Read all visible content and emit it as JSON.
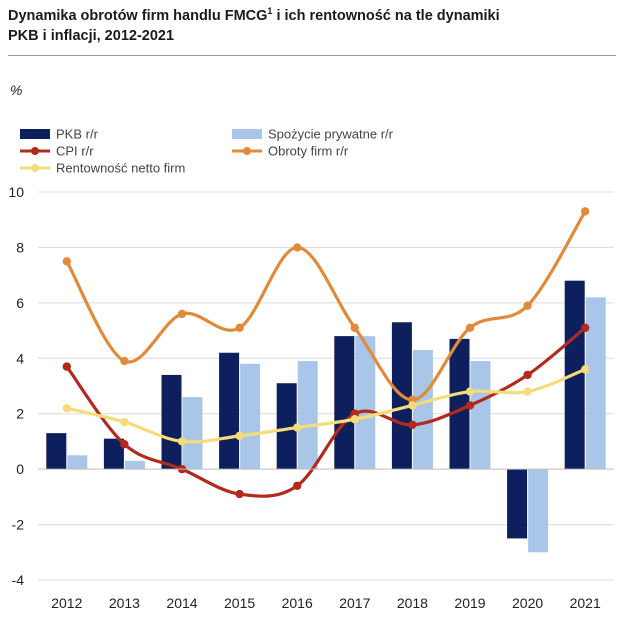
{
  "title_main": "Dynamika obrotów firm handlu FMCG",
  "title_sup": "1",
  "title_rest": " i ich rentowność na tle dynamiki",
  "title_line2": "PKB i inflacji, 2012-2021",
  "unit_label": "%",
  "colors": {
    "pkb": "#0d1f5c",
    "spozycie": "#a9c6e8",
    "cpi": "#b02a1e",
    "obroty": "#e08a3c",
    "rentownosc": "#f5dc7a",
    "grid": "#dcdcdc"
  },
  "chart_data": {
    "type": "bar",
    "title": "Dynamika obrotów firm handlu FMCG i ich rentowność na tle dynamiki PKB i inflacji, 2012-2021",
    "xlabel": "",
    "ylabel": "%",
    "ylim": [
      -4,
      10
    ],
    "yticks": [
      -4,
      -2,
      0,
      2,
      4,
      6,
      8,
      10
    ],
    "grid": true,
    "legend_position": "top-left",
    "categories": [
      "2012",
      "2013",
      "2014",
      "2015",
      "2016",
      "2017",
      "2018",
      "2019",
      "2020",
      "2021"
    ],
    "series": [
      {
        "name": "PKB r/r",
        "kind": "bar",
        "color_key": "pkb",
        "values": [
          1.3,
          1.1,
          3.4,
          4.2,
          3.1,
          4.8,
          5.3,
          4.7,
          -2.5,
          6.8
        ]
      },
      {
        "name": "Spożycie prywatne r/r",
        "kind": "bar",
        "color_key": "spozycie",
        "values": [
          0.5,
          0.3,
          2.6,
          3.8,
          3.9,
          4.8,
          4.3,
          3.9,
          -3.0,
          6.2
        ]
      },
      {
        "name": "CPI r/r",
        "kind": "line",
        "color_key": "cpi",
        "values": [
          3.7,
          0.9,
          0.0,
          -0.9,
          -0.6,
          2.0,
          1.6,
          2.3,
          3.4,
          5.1
        ]
      },
      {
        "name": "Obroty firm r/r",
        "kind": "line",
        "color_key": "obroty",
        "values": [
          7.5,
          3.9,
          5.6,
          5.1,
          8.0,
          5.1,
          2.5,
          5.1,
          5.9,
          9.3
        ]
      },
      {
        "name": "Rentowność netto firm",
        "kind": "line",
        "color_key": "rentownosc",
        "values": [
          2.2,
          1.7,
          1.0,
          1.2,
          1.5,
          1.8,
          2.3,
          2.8,
          2.8,
          3.6
        ]
      }
    ]
  }
}
